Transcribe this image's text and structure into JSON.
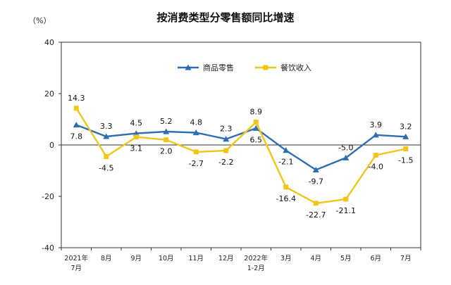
{
  "chart_data": {
    "type": "line",
    "title": "按消费类型分零售额同比增速",
    "unit_label": "（%）",
    "ylim": [
      -40,
      40
    ],
    "yticks": [
      40,
      20,
      0,
      -20,
      -40
    ],
    "grid": false,
    "legend_position": "top-right",
    "categories": [
      [
        "2021年",
        "7月"
      ],
      [
        "8月"
      ],
      [
        "9月"
      ],
      [
        "10月"
      ],
      [
        "11月"
      ],
      [
        "12月"
      ],
      [
        "2022年",
        "1-2月"
      ],
      [
        "3月"
      ],
      [
        "4月"
      ],
      [
        "5月"
      ],
      [
        "6月"
      ],
      [
        "7月"
      ]
    ],
    "series": [
      {
        "name": "商品零售",
        "color": "#2e6db4",
        "marker": "triangle",
        "values": [
          7.8,
          3.3,
          4.5,
          5.2,
          4.8,
          2.3,
          6.5,
          -2.1,
          -9.7,
          -5.0,
          3.9,
          3.2
        ],
        "labels": [
          "7.8",
          "3.3",
          "4.5",
          "5.2",
          "4.8",
          "2.3",
          "6.5",
          "-2.1",
          "-9.7",
          "-5.0",
          "3.9",
          "3.2"
        ],
        "label_pos": [
          "below",
          "above",
          "above",
          "above",
          "above",
          "above",
          "below",
          "below",
          "below",
          "above",
          "above",
          "above"
        ]
      },
      {
        "name": "餐饮收入",
        "color": "#f0c619",
        "marker": "square",
        "values": [
          14.3,
          -4.5,
          3.1,
          2.0,
          -2.7,
          -2.2,
          8.9,
          -16.4,
          -22.7,
          -21.1,
          -4.0,
          -1.5
        ],
        "labels": [
          "14.3",
          "-4.5",
          "3.1",
          "2.0",
          "-2.7",
          "-2.2",
          "8.9",
          "-16.4",
          "-22.7",
          "-21.1",
          "-4.0",
          "-1.5"
        ],
        "label_pos": [
          "above",
          "below",
          "below",
          "below",
          "below",
          "below",
          "above",
          "below",
          "below",
          "below",
          "below",
          "below"
        ]
      }
    ]
  }
}
